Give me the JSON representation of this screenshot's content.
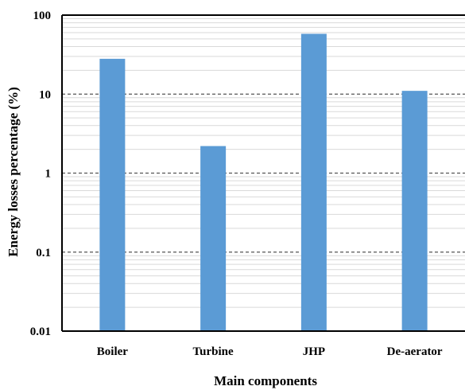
{
  "chart_data": {
    "type": "bar",
    "title": "",
    "xlabel": "Main components",
    "ylabel": "Energy losses percentage (%)",
    "yscale": "log",
    "ylim": [
      0.01,
      100
    ],
    "yticks": [
      0.01,
      0.1,
      1,
      10,
      100
    ],
    "ytick_labels": [
      "0.01",
      "0.1",
      "1",
      "10",
      "100"
    ],
    "categories": [
      "Boiler",
      "Turbine",
      "JHP",
      "De-aerator"
    ],
    "values": [
      28,
      2.2,
      58,
      11
    ],
    "bar_color": "#5b9bd5",
    "grid": "major dashed, minor solid",
    "legend": "none"
  }
}
